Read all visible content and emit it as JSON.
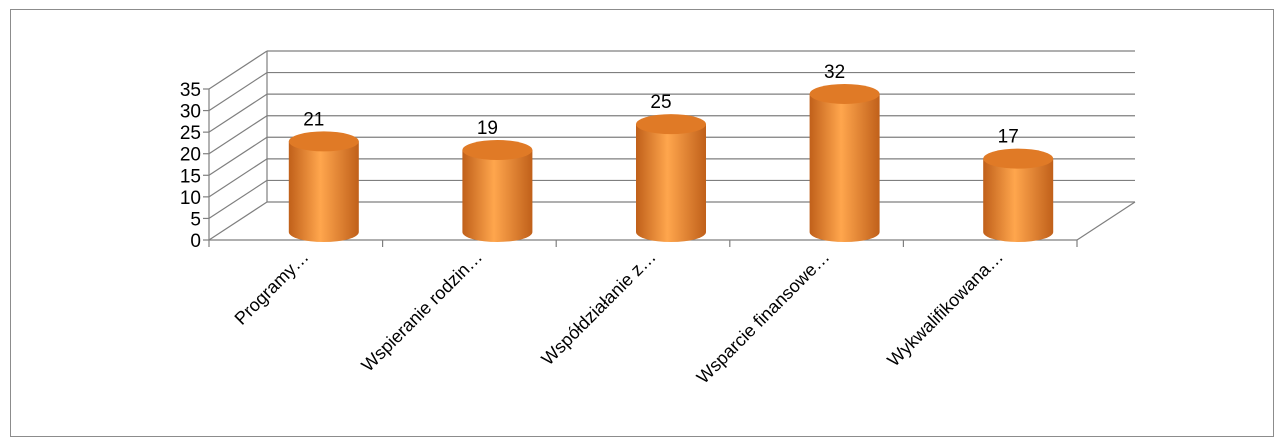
{
  "chart_data": {
    "type": "bar",
    "style": "3d-cylinder",
    "categories": [
      "Programy…",
      "Wspieranie rodzin…",
      "Współdziałanie z…",
      "Wsparcie finansowe…",
      "Wykwalifikowana…"
    ],
    "values": [
      21,
      19,
      25,
      32,
      17
    ],
    "ylim": [
      0,
      35
    ],
    "yticks": [
      0,
      5,
      10,
      15,
      20,
      25,
      30,
      35
    ],
    "ytick_labels": [
      "0",
      "5",
      "10",
      "15",
      "20",
      "25",
      "30",
      "35"
    ],
    "data_labels": [
      "21",
      "19",
      "25",
      "32",
      "17"
    ],
    "grid": true,
    "legend": "none",
    "colors": {
      "bar_light": "#ffa64d",
      "bar_mid": "#f79646",
      "bar_dark": "#c0601a",
      "bar_top": "#e07a26",
      "grid": "#7f7f7f"
    }
  }
}
